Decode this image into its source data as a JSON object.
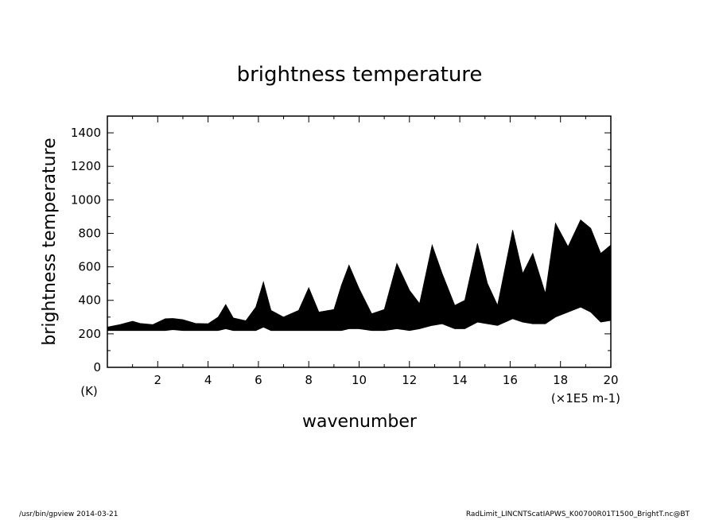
{
  "chart_data": {
    "type": "line",
    "title": "brightness temperature",
    "xlabel": "wavenumber",
    "ylabel": "brightness temperature",
    "x_unit": "(×1E5 m-1)",
    "y_unit": "(K)",
    "xlim": [
      0,
      20
    ],
    "ylim": [
      0,
      1500
    ],
    "x_ticks": [
      2,
      4,
      6,
      8,
      10,
      12,
      14,
      16,
      18,
      20
    ],
    "y_ticks": [
      0,
      200,
      400,
      600,
      800,
      1000,
      1200,
      1400
    ],
    "x_tick_labels": [
      "2",
      "4",
      "6",
      "8",
      "10",
      "12",
      "14",
      "16",
      "18",
      "20"
    ],
    "y_tick_labels": [
      "0",
      "200",
      "400",
      "600",
      "800",
      "1000",
      "1200",
      "1400"
    ],
    "grid": false,
    "series": [
      {
        "x": [
          0.0,
          0.5,
          1.0,
          1.3,
          1.8,
          2.3,
          2.6,
          3.0,
          3.5,
          4.0,
          4.4,
          4.7,
          5.0,
          5.5,
          5.9,
          6.2,
          6.5,
          7.0,
          7.6,
          8.0,
          8.4,
          9.0,
          9.3,
          9.6,
          10.0,
          10.5,
          11.0,
          11.5,
          12.0,
          12.4,
          12.9,
          13.3,
          13.8,
          14.2,
          14.7,
          15.1,
          15.5,
          16.1,
          16.5,
          16.9,
          17.4,
          17.8,
          18.3,
          18.8,
          19.2,
          19.6,
          20.0
        ],
        "upper": [
          240,
          255,
          275,
          262,
          255,
          290,
          292,
          285,
          262,
          260,
          300,
          375,
          295,
          278,
          360,
          510,
          340,
          300,
          340,
          475,
          330,
          345,
          490,
          610,
          470,
          320,
          345,
          620,
          460,
          380,
          730,
          560,
          370,
          400,
          740,
          500,
          370,
          820,
          560,
          680,
          440,
          860,
          720,
          880,
          830,
          680,
          730
        ],
        "lower": [
          220,
          220,
          220,
          220,
          220,
          220,
          225,
          220,
          220,
          220,
          220,
          230,
          220,
          220,
          220,
          240,
          220,
          220,
          220,
          220,
          220,
          220,
          220,
          230,
          230,
          220,
          220,
          230,
          220,
          230,
          250,
          260,
          230,
          230,
          270,
          260,
          250,
          290,
          270,
          260,
          260,
          300,
          330,
          360,
          330,
          270,
          280
        ]
      }
    ]
  },
  "footer": {
    "left": "/usr/bin/gpview  2014-03-21",
    "right": "RadLimit_LINCNTScatIAPWS_K00700R01T1500_BrightT.nc@BT"
  }
}
